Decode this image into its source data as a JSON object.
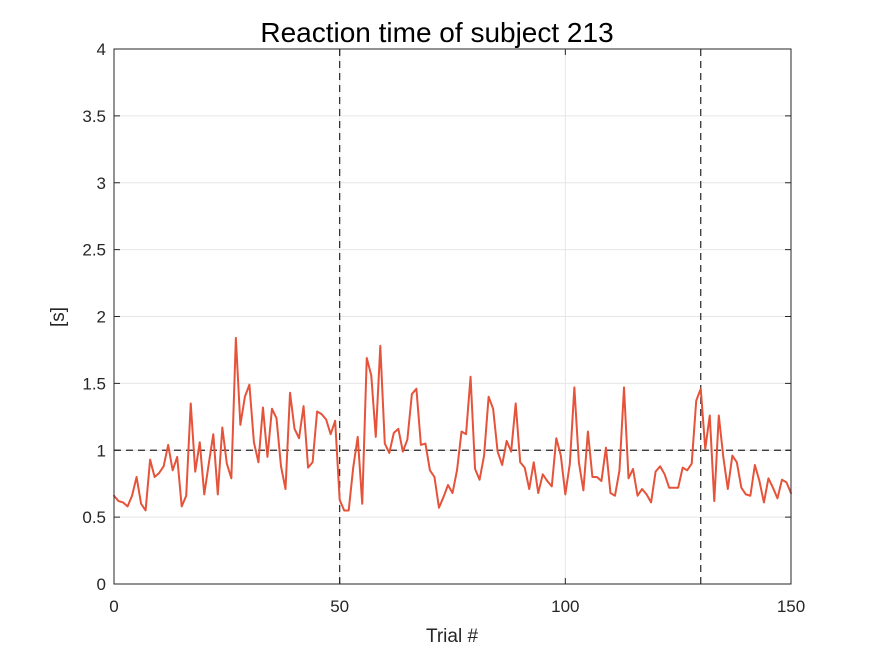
{
  "chart_data": {
    "type": "line",
    "title": "Reaction time of subject 213",
    "xlabel": "Trial #",
    "ylabel": "[s]",
    "xlim": [
      0,
      150
    ],
    "ylim": [
      0,
      4
    ],
    "x_ticks": [
      0,
      50,
      100,
      150
    ],
    "y_ticks": [
      0,
      0.5,
      1,
      1.5,
      2,
      2.5,
      3,
      3.5,
      4
    ],
    "x_tick_labels": [
      "0",
      "50",
      "100",
      "150"
    ],
    "y_tick_labels": [
      "0",
      "0.5",
      "1",
      "1.5",
      "2",
      "2.5",
      "3",
      "3.5",
      "4"
    ],
    "grid": true,
    "reference_lines": {
      "horizontal_y": 1,
      "vertical_x": [
        50,
        130
      ],
      "style": "dashed",
      "color": "#262626"
    },
    "series": [
      {
        "color": "#E5533A",
        "x": [
          0,
          1,
          2,
          3,
          4,
          5,
          6,
          7,
          8,
          9,
          10,
          11,
          12,
          13,
          14,
          15,
          16,
          17,
          18,
          19,
          20,
          21,
          22,
          23,
          24,
          25,
          26,
          27,
          28,
          29,
          30,
          31,
          32,
          33,
          34,
          35,
          36,
          37,
          38,
          39,
          40,
          41,
          42,
          43,
          44,
          45,
          46,
          47,
          48,
          49,
          50,
          51,
          52,
          53,
          54,
          55,
          56,
          57,
          58,
          59,
          60,
          61,
          62,
          63,
          64,
          65,
          66,
          67,
          68,
          69,
          70,
          71,
          72,
          73,
          74,
          75,
          76,
          77,
          78,
          79,
          80,
          81,
          82,
          83,
          84,
          85,
          86,
          87,
          88,
          89,
          90,
          91,
          92,
          93,
          94,
          95,
          96,
          97,
          98,
          99,
          100,
          101,
          102,
          103,
          104,
          105,
          106,
          107,
          108,
          109,
          110,
          111,
          112,
          113,
          114,
          115,
          116,
          117,
          118,
          119,
          120,
          121,
          122,
          123,
          124,
          125,
          126,
          127,
          128,
          129,
          130,
          131,
          132,
          133,
          134,
          135,
          136,
          137,
          138,
          139,
          140,
          141,
          142,
          143,
          144,
          145,
          146,
          147,
          148,
          149,
          150
        ],
        "y": [
          0.66,
          0.62,
          0.61,
          0.58,
          0.66,
          0.8,
          0.6,
          0.55,
          0.93,
          0.8,
          0.83,
          0.88,
          1.04,
          0.85,
          0.95,
          0.58,
          0.66,
          1.35,
          0.84,
          1.06,
          0.67,
          0.9,
          1.12,
          0.67,
          1.17,
          0.9,
          0.79,
          1.84,
          1.19,
          1.4,
          1.49,
          1.06,
          0.91,
          1.32,
          0.95,
          1.31,
          1.24,
          0.88,
          0.71,
          1.43,
          1.16,
          1.09,
          1.33,
          0.87,
          0.91,
          1.29,
          1.27,
          1.23,
          1.12,
          1.22,
          0.63,
          0.55,
          0.55,
          0.87,
          1.1,
          0.6,
          1.69,
          1.56,
          1.1,
          1.78,
          1.05,
          0.98,
          1.13,
          1.16,
          0.99,
          1.08,
          1.42,
          1.46,
          1.04,
          1.05,
          0.85,
          0.8,
          0.57,
          0.65,
          0.74,
          0.68,
          0.85,
          1.14,
          1.12,
          1.55,
          0.86,
          0.78,
          0.96,
          1.4,
          1.31,
          0.99,
          0.89,
          1.07,
          0.99,
          1.35,
          0.91,
          0.87,
          0.71,
          0.91,
          0.68,
          0.82,
          0.77,
          0.73,
          1.09,
          0.96,
          0.67,
          0.9,
          1.47,
          0.91,
          0.7,
          1.14,
          0.8,
          0.8,
          0.77,
          1.02,
          0.68,
          0.66,
          0.85,
          1.47,
          0.79,
          0.86,
          0.66,
          0.71,
          0.67,
          0.61,
          0.84,
          0.88,
          0.82,
          0.72,
          0.72,
          0.72,
          0.87,
          0.85,
          0.9,
          1.37,
          1.46,
          1.01,
          1.26,
          0.62,
          1.26,
          0.95,
          0.71,
          0.96,
          0.91,
          0.72,
          0.67,
          0.66,
          0.89,
          0.77,
          0.61,
          0.79,
          0.72,
          0.64,
          0.78,
          0.76,
          0.68
        ]
      }
    ]
  }
}
